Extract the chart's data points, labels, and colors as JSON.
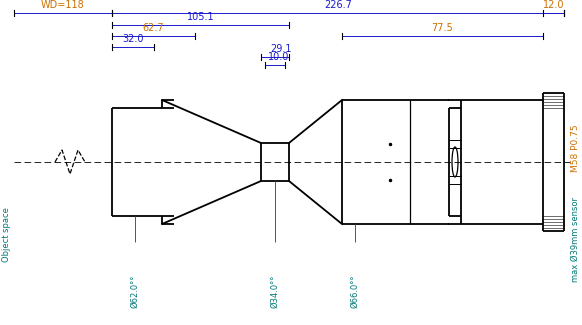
{
  "bg_color": "#ffffff",
  "line_color": "#000000",
  "blue": "#1a1acd",
  "orange": "#cc7000",
  "teal": "#007878",
  "wd_label": "WD=118",
  "dim_226_7": "226.7",
  "dim_12_0": "12.0",
  "dim_105_1": "105.1",
  "dim_62_7": "62.7",
  "dim_32_0": "32.0",
  "dim_29_1": "29.1",
  "dim_10_0": "10.0",
  "dim_77_5": "77.5",
  "label_object_space": "Object space",
  "label_m58": "M58 P0.75",
  "label_sensor": "max Ø39mm sensor",
  "figsize": [
    5.82,
    3.25
  ],
  "dpi": 100
}
